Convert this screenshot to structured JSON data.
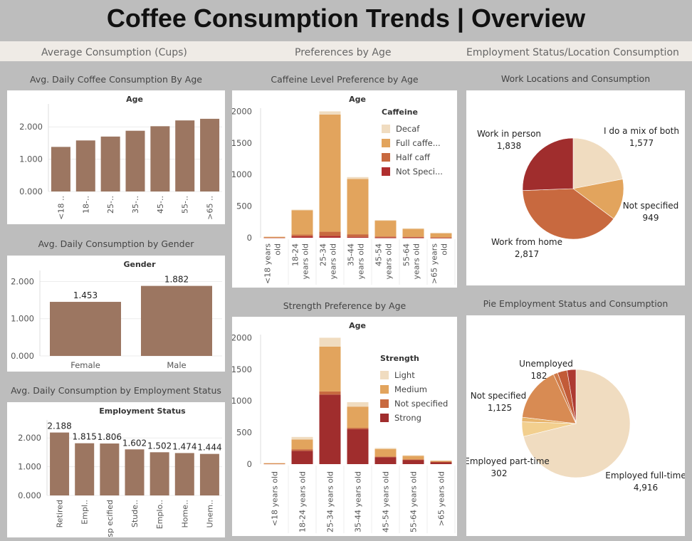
{
  "title": "Coffee Consumption Trends | Overview",
  "sections": {
    "avg": "Average Consumption (Cups)",
    "pref": "Preferences by Age",
    "emp": "Employment Status/Location Consumption"
  },
  "colors": {
    "bar": "#9c7661",
    "decaf": "#f0dcc0",
    "full": "#e2a45d",
    "half": "#c8693f",
    "not_specified_caff": "#b02e2e",
    "light": "#f0dcc0",
    "medium": "#e2a45d",
    "not_specified_str": "#c8693f",
    "strong": "#a02d2d"
  },
  "chart_data": [
    {
      "id": "age",
      "type": "bar",
      "title": "Avg. Daily Coffee Consumption By Age",
      "header": "Age",
      "categories": [
        "<18 ..",
        "18-..",
        "25-..",
        "35-..",
        "45-..",
        "55-..",
        ">65 .."
      ],
      "values": [
        1.38,
        1.58,
        1.7,
        1.88,
        2.02,
        2.2,
        2.25
      ],
      "ylim": [
        0,
        2.6
      ],
      "yticks": [
        "0.000",
        "1.000",
        "2.000"
      ],
      "ytick_values": [
        0,
        1,
        2
      ]
    },
    {
      "id": "gender",
      "type": "bar",
      "title": "Avg. Daily Consumption by Gender",
      "header": "Gender",
      "categories": [
        "Female",
        "Male"
      ],
      "values": [
        1.453,
        1.882
      ],
      "labels": [
        "1.453",
        "1.882"
      ],
      "ylim": [
        0,
        2.2
      ],
      "yticks": [
        "0.000",
        "1.000",
        "2.000"
      ],
      "ytick_values": [
        0,
        1,
        2
      ]
    },
    {
      "id": "employment",
      "type": "bar",
      "title": "Avg. Daily Consumption by Employment Status",
      "header": "Employment Status",
      "categories": [
        "Retired",
        "Empl..",
        "Not sp ecified",
        "Stude..",
        "Emplo..",
        "Home..",
        "Unem.."
      ],
      "values": [
        2.188,
        1.815,
        1.806,
        1.602,
        1.502,
        1.474,
        1.444
      ],
      "labels": [
        "2.188",
        "1.815",
        "1.806",
        "1.602",
        "1.502",
        "1.474",
        "1.444"
      ],
      "ylim": [
        0,
        2.5
      ],
      "yticks": [
        "0.000",
        "1.000",
        "2.000"
      ],
      "ytick_values": [
        0,
        1,
        2
      ]
    },
    {
      "id": "caffeine",
      "type": "bar",
      "stacked": true,
      "title": "Caffeine Level Preference by Age",
      "header": "Age",
      "categories": [
        "<18 years old",
        "18-24 years old",
        "25-34 years old",
        "35-44 years old",
        "45-54 years old",
        "55-64 years old",
        ">65 years old"
      ],
      "series": [
        {
          "name": "Not Speci...",
          "values": [
            6,
            25,
            30,
            15,
            5,
            5,
            2
          ]
        },
        {
          "name": "Half caff",
          "values": [
            4,
            25,
            65,
            40,
            15,
            10,
            5
          ]
        },
        {
          "name": "Full caffe...",
          "values": [
            5,
            385,
            1855,
            875,
            255,
            130,
            70
          ]
        },
        {
          "name": "Decaf",
          "values": [
            0,
            10,
            50,
            30,
            5,
            5,
            3
          ]
        }
      ],
      "legend_title": "Caffeine",
      "legend_order": [
        "Decaf",
        "Full caffe...",
        "Half caff",
        "Not Speci..."
      ],
      "ylim": [
        0,
        2050
      ],
      "yticks": [
        "0",
        "500",
        "1000",
        "1500",
        "2000"
      ],
      "ytick_values": [
        0,
        500,
        1000,
        1500,
        2000
      ]
    },
    {
      "id": "strength",
      "type": "bar",
      "stacked": true,
      "title": "Strength Preference by Age",
      "header": "Age",
      "categories": [
        "<18 years old",
        "18-24 years old",
        "25-34 years old",
        "35-44 years old",
        "45-54 years old",
        "55-64 years old",
        ">65 years old"
      ],
      "series": [
        {
          "name": "Strong",
          "values": [
            10,
            210,
            1100,
            555,
            110,
            70,
            35
          ]
        },
        {
          "name": "Not specified",
          "values": [
            2,
            25,
            50,
            20,
            10,
            5,
            5
          ]
        },
        {
          "name": "Medium",
          "values": [
            3,
            155,
            710,
            335,
            120,
            55,
            15
          ]
        },
        {
          "name": "Light",
          "values": [
            0,
            40,
            140,
            70,
            15,
            10,
            5
          ]
        }
      ],
      "legend_title": "Strength",
      "legend_order": [
        "Light",
        "Medium",
        "Not specified",
        "Strong"
      ],
      "ylim": [
        0,
        2050
      ],
      "yticks": [
        "0",
        "500",
        "1000",
        "1500",
        "2000"
      ],
      "ytick_values": [
        0,
        500,
        1000,
        1500,
        2000
      ]
    },
    {
      "id": "worklocation",
      "type": "pie",
      "title": "Work Locations and Consumption",
      "slices": [
        {
          "name": "I do a mix of both",
          "value": 1577,
          "label": "1,577",
          "color": "#f0dcc0"
        },
        {
          "name": "Not specified",
          "value": 949,
          "label": "949",
          "color": "#e2a45d"
        },
        {
          "name": "Work from home",
          "value": 2817,
          "label": "2,817",
          "color": "#c8693f"
        },
        {
          "name": "Work in person",
          "value": 1838,
          "label": "1,838",
          "color": "#a02d2d"
        }
      ]
    },
    {
      "id": "empstatus",
      "type": "pie",
      "title": "Pie Employment Status and Consumption",
      "slices": [
        {
          "name": "Employed full-time",
          "value": 4916,
          "label": "4,916",
          "color": "#f0dcc0"
        },
        {
          "name": "Employed part-time",
          "value": 302,
          "label": "302",
          "color": "#f2cf8e"
        },
        {
          "name": "",
          "value": 95,
          "label": "",
          "color": "#e8b56d"
        },
        {
          "name": "Not specified",
          "value": 1125,
          "label": "1,125",
          "color": "#d88b53"
        },
        {
          "name": "",
          "value": 90,
          "label": "",
          "color": "#cf7a48"
        },
        {
          "name": "",
          "value": 200,
          "label": "",
          "color": "#c25b38"
        },
        {
          "name": "Unemployed",
          "value": 182,
          "label": "182",
          "color": "#ad3a32"
        }
      ]
    }
  ]
}
